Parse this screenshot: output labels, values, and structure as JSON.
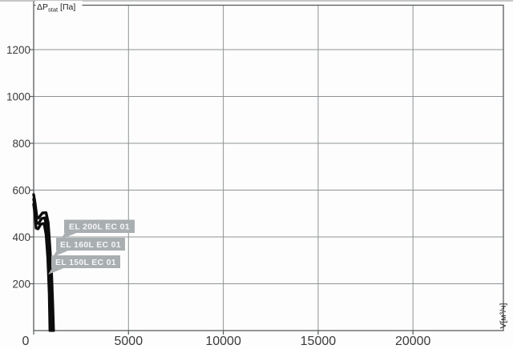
{
  "chart_data": {
    "type": "line",
    "title": "",
    "xlabel": "V[м³/ч]",
    "ylabel": "ΔPstat [Па]",
    "xlim": [
      0,
      24770
    ],
    "ylim": [
      0,
      1386
    ],
    "x_ticks": [
      0,
      5000,
      10000,
      15000,
      20000
    ],
    "y_ticks": [
      200,
      400,
      600,
      800,
      1000,
      1200
    ],
    "grid": true,
    "legend_position": "inline-callouts",
    "series": [
      {
        "name": "EL 200L EC 01",
        "points": [
          [
            0,
            579
          ],
          [
            64,
            549
          ],
          [
            169,
            484
          ],
          [
            254,
            479
          ],
          [
            466,
            501
          ],
          [
            657,
            502
          ],
          [
            763,
            460
          ],
          [
            847,
            368
          ],
          [
            953,
            232
          ],
          [
            1010,
            100
          ],
          [
            1050,
            0
          ]
        ]
      },
      {
        "name": "EL 160L EC 01",
        "points": [
          [
            0,
            559
          ],
          [
            85,
            518
          ],
          [
            148,
            460
          ],
          [
            254,
            456
          ],
          [
            424,
            477
          ],
          [
            593,
            480
          ],
          [
            699,
            429
          ],
          [
            805,
            324
          ],
          [
            900,
            180
          ],
          [
            961,
            0
          ]
        ]
      },
      {
        "name": "EL 150L EC 01",
        "points": [
          [
            0,
            538
          ],
          [
            64,
            497
          ],
          [
            127,
            436
          ],
          [
            233,
            433
          ],
          [
            381,
            453
          ],
          [
            551,
            456
          ],
          [
            657,
            409
          ],
          [
            742,
            310
          ],
          [
            820,
            160
          ],
          [
            860,
            0
          ]
        ]
      }
    ]
  },
  "axes": {
    "y_title_prefix": "ΔP",
    "y_title_sub": "stat",
    "y_title_suffix": " [Па]",
    "x_title": "V[м³/ч]",
    "y_ticks": [
      "1200",
      "1000",
      "800",
      "600",
      "400",
      "200"
    ],
    "x_ticks": [
      "0",
      "5000",
      "10000",
      "15000",
      "20000"
    ]
  },
  "colors": {
    "curve": "#0c0c0c",
    "grid": "#8e9294",
    "frame": "#595d5f",
    "callout_bg": "#a9aeb0",
    "callout_text": "#f5f6f7"
  }
}
